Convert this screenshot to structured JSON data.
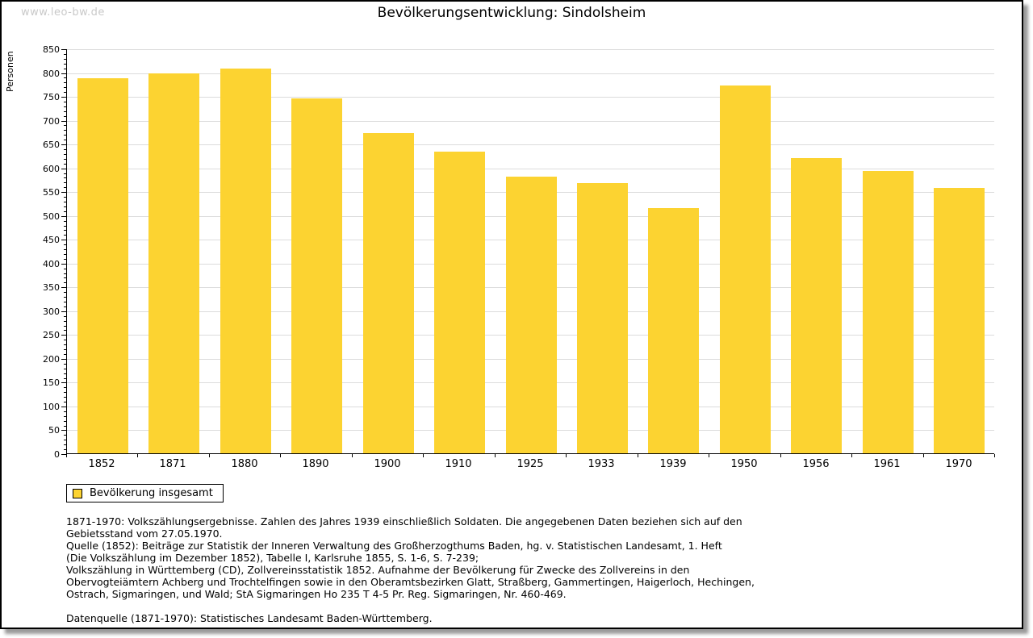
{
  "page": {
    "watermark": "www.leo-bw.de",
    "title": "Bevölkerungsentwicklung: Sindolsheim"
  },
  "chart_data": {
    "type": "bar",
    "title": "Bevölkerungsentwicklung: Sindolsheim",
    "categories": [
      "1852",
      "1871",
      "1880",
      "1890",
      "1900",
      "1910",
      "1925",
      "1933",
      "1939",
      "1950",
      "1956",
      "1961",
      "1970"
    ],
    "values": [
      787,
      797,
      807,
      745,
      672,
      634,
      580,
      567,
      514,
      772,
      620,
      593,
      557
    ],
    "series": [
      {
        "name": "Bevölkerung insgesamt",
        "values": [
          787,
          797,
          807,
          745,
          672,
          634,
          580,
          567,
          514,
          772,
          620,
          593,
          557
        ]
      }
    ],
    "xlabel": "",
    "ylabel": "Personen",
    "ylim": [
      0,
      850
    ],
    "ytick_step": 50,
    "minor_tick_step": 10,
    "grid": true,
    "legend_position": "below-left",
    "bar_color": "#fcd331"
  },
  "legend": {
    "label": "Bevölkerung insgesamt"
  },
  "colors": {
    "bar": "#fcd331",
    "grid": "#dcdcdc",
    "axis": "#000000",
    "watermark": "#c9c9c9"
  },
  "footnotes": {
    "lines": [
      "1871-1970: Volkszählungsergebnisse. Zahlen des Jahres 1939 einschließlich Soldaten. Die angegebenen Daten beziehen sich auf den",
      "Gebietsstand vom 27.05.1970.",
      "Quelle (1852): Beiträge zur Statistik der Inneren Verwaltung des Großherzogthums Baden, hg. v. Statistischen Landesamt, 1. Heft",
      "(Die Volkszählung im Dezember 1852), Tabelle I, Karlsruhe 1855, S. 1-6, S. 7-239;",
      "Volkszählung in Württemberg (CD), Zollvereinsstatistik 1852. Aufnahme der Bevölkerung für Zwecke des Zollvereins in den",
      "Obervogteiämtern Achberg und Trochtelfingen sowie in den Oberamtsbezirken Glatt, Straßberg, Gammertingen, Haigerloch, Hechingen,",
      "Ostrach, Sigmaringen, und Wald; StA Sigmaringen Ho 235 T 4-5 Pr. Reg. Sigmaringen, Nr. 460-469."
    ],
    "datasource": "Datenquelle (1871-1970): Statistisches Landesamt Baden-Württemberg."
  }
}
